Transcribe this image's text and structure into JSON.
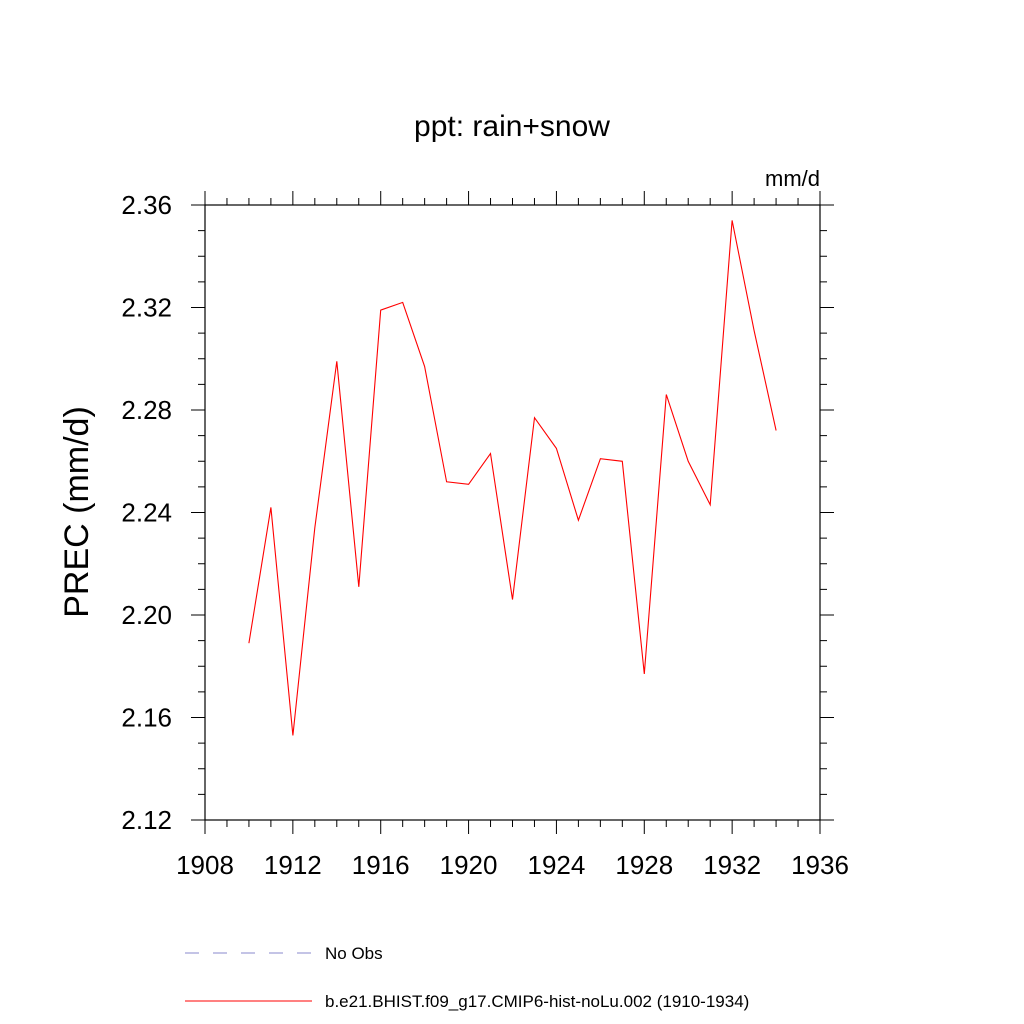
{
  "chart_data": {
    "type": "line",
    "title": "ppt: rain+snow",
    "units": "mm/d",
    "ylabel": "PREC  (mm/d)",
    "xlabel": "",
    "xlim": [
      1908,
      1936
    ],
    "ylim": [
      2.12,
      2.36
    ],
    "x_ticks": [
      "1908",
      "1912",
      "1916",
      "1920",
      "1924",
      "1928",
      "1932",
      "1936"
    ],
    "y_ticks": [
      "2.12",
      "2.16",
      "2.20",
      "2.24",
      "2.28",
      "2.32",
      "2.36"
    ],
    "x": [
      1910,
      1911,
      1912,
      1913,
      1914,
      1915,
      1916,
      1917,
      1918,
      1919,
      1920,
      1921,
      1922,
      1923,
      1924,
      1925,
      1926,
      1927,
      1928,
      1929,
      1930,
      1931,
      1932,
      1933,
      1934
    ],
    "series": [
      {
        "name": "b.e21.BHIST.f09_g17.CMIP6-hist-noLu.002 (1910-1934)",
        "color": "#ff0000",
        "values": [
          2.189,
          2.242,
          2.153,
          2.234,
          2.299,
          2.211,
          2.319,
          2.322,
          2.297,
          2.252,
          2.251,
          2.263,
          2.206,
          2.277,
          2.265,
          2.237,
          2.261,
          2.26,
          2.177,
          2.286,
          2.26,
          2.243,
          2.354,
          2.311,
          2.272
        ]
      }
    ],
    "legend": [
      {
        "label": "No Obs",
        "style": "dashed",
        "color": "#8888cc"
      },
      {
        "label": "b.e21.BHIST.f09_g17.CMIP6-hist-noLu.002 (1910-1934)",
        "style": "solid",
        "color": "#ff0000"
      }
    ],
    "legend_position": "bottom",
    "grid": false
  }
}
